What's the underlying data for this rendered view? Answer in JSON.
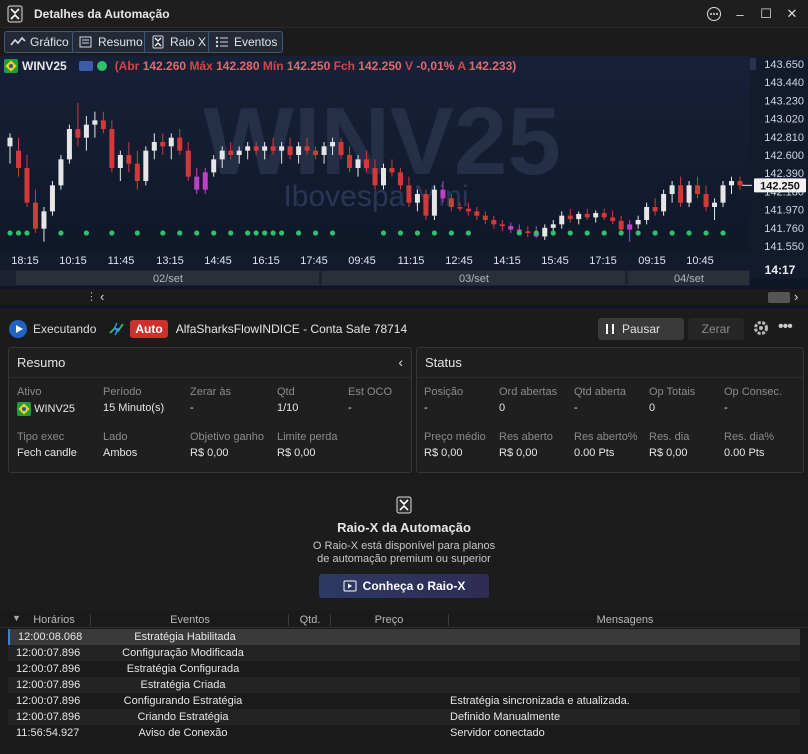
{
  "window": {
    "title": "Detalhes da Automação"
  },
  "toolbar": {
    "tabs": [
      {
        "label": "Gráfico",
        "icon": "chart-line-icon"
      },
      {
        "label": "Resumo",
        "icon": "list-icon"
      },
      {
        "label": "Raio X",
        "icon": "raio-x-icon"
      },
      {
        "label": "Eventos",
        "icon": "list-bullets-icon"
      }
    ]
  },
  "chart": {
    "symbol": "WINV25",
    "watermark_symbol": "WINV25",
    "watermark_name": "Ibovespa Mini",
    "quote": {
      "open_label": "(Abr",
      "open": "142.260",
      "high_label": "Máx",
      "high": "142.280",
      "low_label": "Mín",
      "low": "142.250",
      "close_label": "Fch",
      "close": "142.250",
      "var_label": "V",
      "var": "-0,01%",
      "avg_label": "A",
      "avg": "142.233)"
    },
    "price_labels": [
      "143.650",
      "143.440",
      "143.230",
      "143.020",
      "142.810",
      "142.600",
      "142.390",
      "142.180",
      "141.970",
      "141.760",
      "141.550"
    ],
    "current_price": "142.250",
    "time_labels": [
      "18:15",
      "10:15",
      "11:45",
      "13:15",
      "14:45",
      "16:15",
      "17:45",
      "09:45",
      "11:15",
      "12:45",
      "14:15",
      "15:45",
      "17:15",
      "09:15",
      "10:45"
    ],
    "clock": "14:17",
    "dates": [
      "02/set",
      "03/set",
      "04/set"
    ]
  },
  "chart_data": {
    "type": "candlestick",
    "ylim": [
      141.55,
      143.65
    ],
    "up_color": "#e6e6e6",
    "down_color": "#d23a3a",
    "special_color": "#c040c8",
    "candles": [
      {
        "o": 142.7,
        "h": 142.85,
        "l": 142.5,
        "c": 142.8
      },
      {
        "o": 142.65,
        "h": 142.8,
        "l": 142.35,
        "c": 142.45
      },
      {
        "o": 142.45,
        "h": 142.6,
        "l": 142.0,
        "c": 142.05
      },
      {
        "o": 142.05,
        "h": 142.2,
        "l": 141.7,
        "c": 141.75
      },
      {
        "o": 141.75,
        "h": 142.0,
        "l": 141.6,
        "c": 141.95
      },
      {
        "o": 141.95,
        "h": 142.3,
        "l": 141.9,
        "c": 142.25
      },
      {
        "o": 142.25,
        "h": 142.6,
        "l": 142.2,
        "c": 142.55
      },
      {
        "o": 142.55,
        "h": 142.95,
        "l": 142.5,
        "c": 142.9
      },
      {
        "o": 142.9,
        "h": 143.2,
        "l": 142.7,
        "c": 142.8
      },
      {
        "o": 142.8,
        "h": 143.05,
        "l": 142.65,
        "c": 142.95
      },
      {
        "o": 142.95,
        "h": 143.1,
        "l": 142.8,
        "c": 143.0
      },
      {
        "o": 143.0,
        "h": 143.1,
        "l": 142.85,
        "c": 142.9
      },
      {
        "o": 142.9,
        "h": 143.0,
        "l": 142.4,
        "c": 142.45
      },
      {
        "o": 142.45,
        "h": 142.65,
        "l": 142.3,
        "c": 142.6
      },
      {
        "o": 142.6,
        "h": 142.75,
        "l": 142.4,
        "c": 142.5
      },
      {
        "o": 142.5,
        "h": 142.65,
        "l": 142.2,
        "c": 142.3
      },
      {
        "o": 142.3,
        "h": 142.7,
        "l": 142.25,
        "c": 142.65
      },
      {
        "o": 142.65,
        "h": 142.85,
        "l": 142.55,
        "c": 142.75
      },
      {
        "o": 142.75,
        "h": 142.85,
        "l": 142.6,
        "c": 142.7
      },
      {
        "o": 142.7,
        "h": 142.85,
        "l": 142.55,
        "c": 142.8
      },
      {
        "o": 142.8,
        "h": 142.9,
        "l": 142.6,
        "c": 142.65
      },
      {
        "o": 142.65,
        "h": 142.75,
        "l": 142.3,
        "c": 142.35
      },
      {
        "o": 142.35,
        "h": 142.45,
        "l": 142.15,
        "c": 142.2,
        "special": true
      },
      {
        "o": 142.2,
        "h": 142.45,
        "l": 142.15,
        "c": 142.4,
        "special": true
      },
      {
        "o": 142.4,
        "h": 142.6,
        "l": 142.35,
        "c": 142.55
      },
      {
        "o": 142.55,
        "h": 142.7,
        "l": 142.45,
        "c": 142.65
      },
      {
        "o": 142.65,
        "h": 142.75,
        "l": 142.55,
        "c": 142.6
      },
      {
        "o": 142.6,
        "h": 142.7,
        "l": 142.5,
        "c": 142.65
      },
      {
        "o": 142.65,
        "h": 142.75,
        "l": 142.55,
        "c": 142.7
      },
      {
        "o": 142.7,
        "h": 142.75,
        "l": 142.6,
        "c": 142.65
      },
      {
        "o": 142.65,
        "h": 142.75,
        "l": 142.55,
        "c": 142.7
      },
      {
        "o": 142.7,
        "h": 142.8,
        "l": 142.6,
        "c": 142.65
      },
      {
        "o": 142.65,
        "h": 142.75,
        "l": 142.5,
        "c": 142.7
      },
      {
        "o": 142.7,
        "h": 142.8,
        "l": 142.55,
        "c": 142.6
      },
      {
        "o": 142.6,
        "h": 142.75,
        "l": 142.5,
        "c": 142.7
      },
      {
        "o": 142.7,
        "h": 142.8,
        "l": 142.6,
        "c": 142.65
      },
      {
        "o": 142.65,
        "h": 142.7,
        "l": 142.55,
        "c": 142.6
      },
      {
        "o": 142.6,
        "h": 142.75,
        "l": 142.5,
        "c": 142.7
      },
      {
        "o": 142.7,
        "h": 142.8,
        "l": 142.6,
        "c": 142.75
      },
      {
        "o": 142.75,
        "h": 142.8,
        "l": 142.55,
        "c": 142.6
      },
      {
        "o": 142.6,
        "h": 142.7,
        "l": 142.4,
        "c": 142.45
      },
      {
        "o": 142.45,
        "h": 142.6,
        "l": 142.35,
        "c": 142.55
      },
      {
        "o": 142.55,
        "h": 142.65,
        "l": 142.4,
        "c": 142.45
      },
      {
        "o": 142.45,
        "h": 142.55,
        "l": 142.2,
        "c": 142.25
      },
      {
        "o": 142.25,
        "h": 142.5,
        "l": 142.2,
        "c": 142.45
      },
      {
        "o": 142.45,
        "h": 142.55,
        "l": 142.35,
        "c": 142.4
      },
      {
        "o": 142.4,
        "h": 142.45,
        "l": 142.2,
        "c": 142.25
      },
      {
        "o": 142.25,
        "h": 142.35,
        "l": 142.0,
        "c": 142.05
      },
      {
        "o": 142.05,
        "h": 142.2,
        "l": 141.95,
        "c": 142.15
      },
      {
        "o": 142.15,
        "h": 142.2,
        "l": 141.85,
        "c": 141.9
      },
      {
        "o": 141.9,
        "h": 142.25,
        "l": 141.85,
        "c": 142.2
      },
      {
        "o": 142.2,
        "h": 142.3,
        "l": 142.05,
        "c": 142.1,
        "special": true
      },
      {
        "o": 142.1,
        "h": 142.15,
        "l": 141.95,
        "c": 142.0
      },
      {
        "o": 142.0,
        "h": 142.05,
        "l": 141.95,
        "c": 141.98
      },
      {
        "o": 141.98,
        "h": 142.05,
        "l": 141.9,
        "c": 141.95
      },
      {
        "o": 141.95,
        "h": 142.0,
        "l": 141.85,
        "c": 141.9
      },
      {
        "o": 141.9,
        "h": 141.95,
        "l": 141.8,
        "c": 141.85
      },
      {
        "o": 141.85,
        "h": 141.9,
        "l": 141.75,
        "c": 141.8
      },
      {
        "o": 141.8,
        "h": 141.85,
        "l": 141.72,
        "c": 141.78
      },
      {
        "o": 141.78,
        "h": 141.82,
        "l": 141.7,
        "c": 141.74,
        "special": true
      },
      {
        "o": 141.74,
        "h": 141.8,
        "l": 141.68,
        "c": 141.72,
        "special": true
      },
      {
        "o": 141.72,
        "h": 141.78,
        "l": 141.65,
        "c": 141.7
      },
      {
        "o": 141.7,
        "h": 141.78,
        "l": 141.64,
        "c": 141.66,
        "special": true
      },
      {
        "o": 141.66,
        "h": 141.8,
        "l": 141.62,
        "c": 141.76
      },
      {
        "o": 141.76,
        "h": 141.85,
        "l": 141.72,
        "c": 141.8
      },
      {
        "o": 141.8,
        "h": 141.95,
        "l": 141.75,
        "c": 141.9
      },
      {
        "o": 141.9,
        "h": 141.98,
        "l": 141.82,
        "c": 141.86
      },
      {
        "o": 141.86,
        "h": 141.95,
        "l": 141.8,
        "c": 141.92
      },
      {
        "o": 141.92,
        "h": 141.98,
        "l": 141.85,
        "c": 141.88
      },
      {
        "o": 141.88,
        "h": 141.96,
        "l": 141.82,
        "c": 141.93
      },
      {
        "o": 141.93,
        "h": 141.98,
        "l": 141.85,
        "c": 141.88
      },
      {
        "o": 141.88,
        "h": 141.96,
        "l": 141.8,
        "c": 141.84
      },
      {
        "o": 141.84,
        "h": 141.9,
        "l": 141.7,
        "c": 141.74
      },
      {
        "o": 141.74,
        "h": 141.85,
        "l": 141.6,
        "c": 141.8,
        "special": true
      },
      {
        "o": 141.8,
        "h": 141.9,
        "l": 141.75,
        "c": 141.85
      },
      {
        "o": 141.85,
        "h": 142.05,
        "l": 141.8,
        "c": 142.0
      },
      {
        "o": 142.0,
        "h": 142.1,
        "l": 141.9,
        "c": 141.95
      },
      {
        "o": 141.95,
        "h": 142.2,
        "l": 141.9,
        "c": 142.15
      },
      {
        "o": 142.15,
        "h": 142.3,
        "l": 142.05,
        "c": 142.25
      },
      {
        "o": 142.25,
        "h": 142.35,
        "l": 142.0,
        "c": 142.05
      },
      {
        "o": 142.05,
        "h": 142.3,
        "l": 142.0,
        "c": 142.25
      },
      {
        "o": 142.25,
        "h": 142.35,
        "l": 142.1,
        "c": 142.15
      },
      {
        "o": 142.15,
        "h": 142.25,
        "l": 141.95,
        "c": 142.0
      },
      {
        "o": 142.0,
        "h": 142.1,
        "l": 141.85,
        "c": 142.05
      },
      {
        "o": 142.05,
        "h": 142.3,
        "l": 142.0,
        "c": 142.25
      },
      {
        "o": 142.25,
        "h": 142.35,
        "l": 142.15,
        "c": 142.3
      },
      {
        "o": 142.3,
        "h": 142.35,
        "l": 142.2,
        "c": 142.25
      }
    ]
  },
  "run": {
    "status": "Executando",
    "badge": "Auto",
    "strategy": "AlfaSharksFlowINDICE - Conta Safe 78714",
    "pause_label": "Pausar",
    "reset_label": "Zerar"
  },
  "resumo": {
    "title": "Resumo",
    "fields": [
      {
        "label": "Ativo",
        "value": "WINV25"
      },
      {
        "label": "Período",
        "value": "15 Minuto(s)"
      },
      {
        "label": "Zerar às",
        "value": "-"
      },
      {
        "label": "Qtd",
        "value": "1/10"
      },
      {
        "label": "Est OCO",
        "value": "-"
      },
      {
        "label": "Tipo exec",
        "value": "Fech candle"
      },
      {
        "label": "Lado",
        "value": "Ambos"
      },
      {
        "label": "Objetivo ganho",
        "value": "R$ 0,00"
      },
      {
        "label": "Limite perda",
        "value": "R$ 0,00"
      }
    ]
  },
  "status": {
    "title": "Status",
    "fields": [
      {
        "label": "Posição",
        "value": "-"
      },
      {
        "label": "Ord abertas",
        "value": "0"
      },
      {
        "label": "Qtd aberta",
        "value": "-"
      },
      {
        "label": "Op Totais",
        "value": "0"
      },
      {
        "label": "Op Consec.",
        "value": "-"
      },
      {
        "label": "Preço médio",
        "value": "R$ 0,00"
      },
      {
        "label": "Res aberto",
        "value": "R$ 0,00"
      },
      {
        "label": "Res aberto%",
        "value": "0.00 Pts"
      },
      {
        "label": "Res. dia",
        "value": "R$ 0,00"
      },
      {
        "label": "Res. dia%",
        "value": "0.00 Pts"
      }
    ]
  },
  "raiox": {
    "title": "Raio-X da Automação",
    "line1": "O Raio-X está disponível para planos",
    "line2": "de automação premium ou superior",
    "cta": "Conheça o Raio-X"
  },
  "events": {
    "headers": [
      "Horários",
      "Eventos",
      "Qtd.",
      "Preço",
      "Mensagens"
    ],
    "rows": [
      {
        "time": "12:00:08.068",
        "event": "Estratégia Habilitada",
        "msg": ""
      },
      {
        "time": "12:00:07.896",
        "event": "Configuração Modificada",
        "msg": ""
      },
      {
        "time": "12:00:07.896",
        "event": "Estratégia Configurada",
        "msg": ""
      },
      {
        "time": "12:00:07.896",
        "event": "Estratégia Criada",
        "msg": ""
      },
      {
        "time": "12:00:07.896",
        "event": "Configurando Estratégia",
        "msg": "Estratégia sincronizada e atualizada."
      },
      {
        "time": "12:00:07.896",
        "event": "Criando Estratégia",
        "msg": "Definido Manualmente"
      },
      {
        "time": "11:56:54.927",
        "event": "Aviso de Conexão",
        "msg": "Servidor conectado"
      }
    ]
  }
}
